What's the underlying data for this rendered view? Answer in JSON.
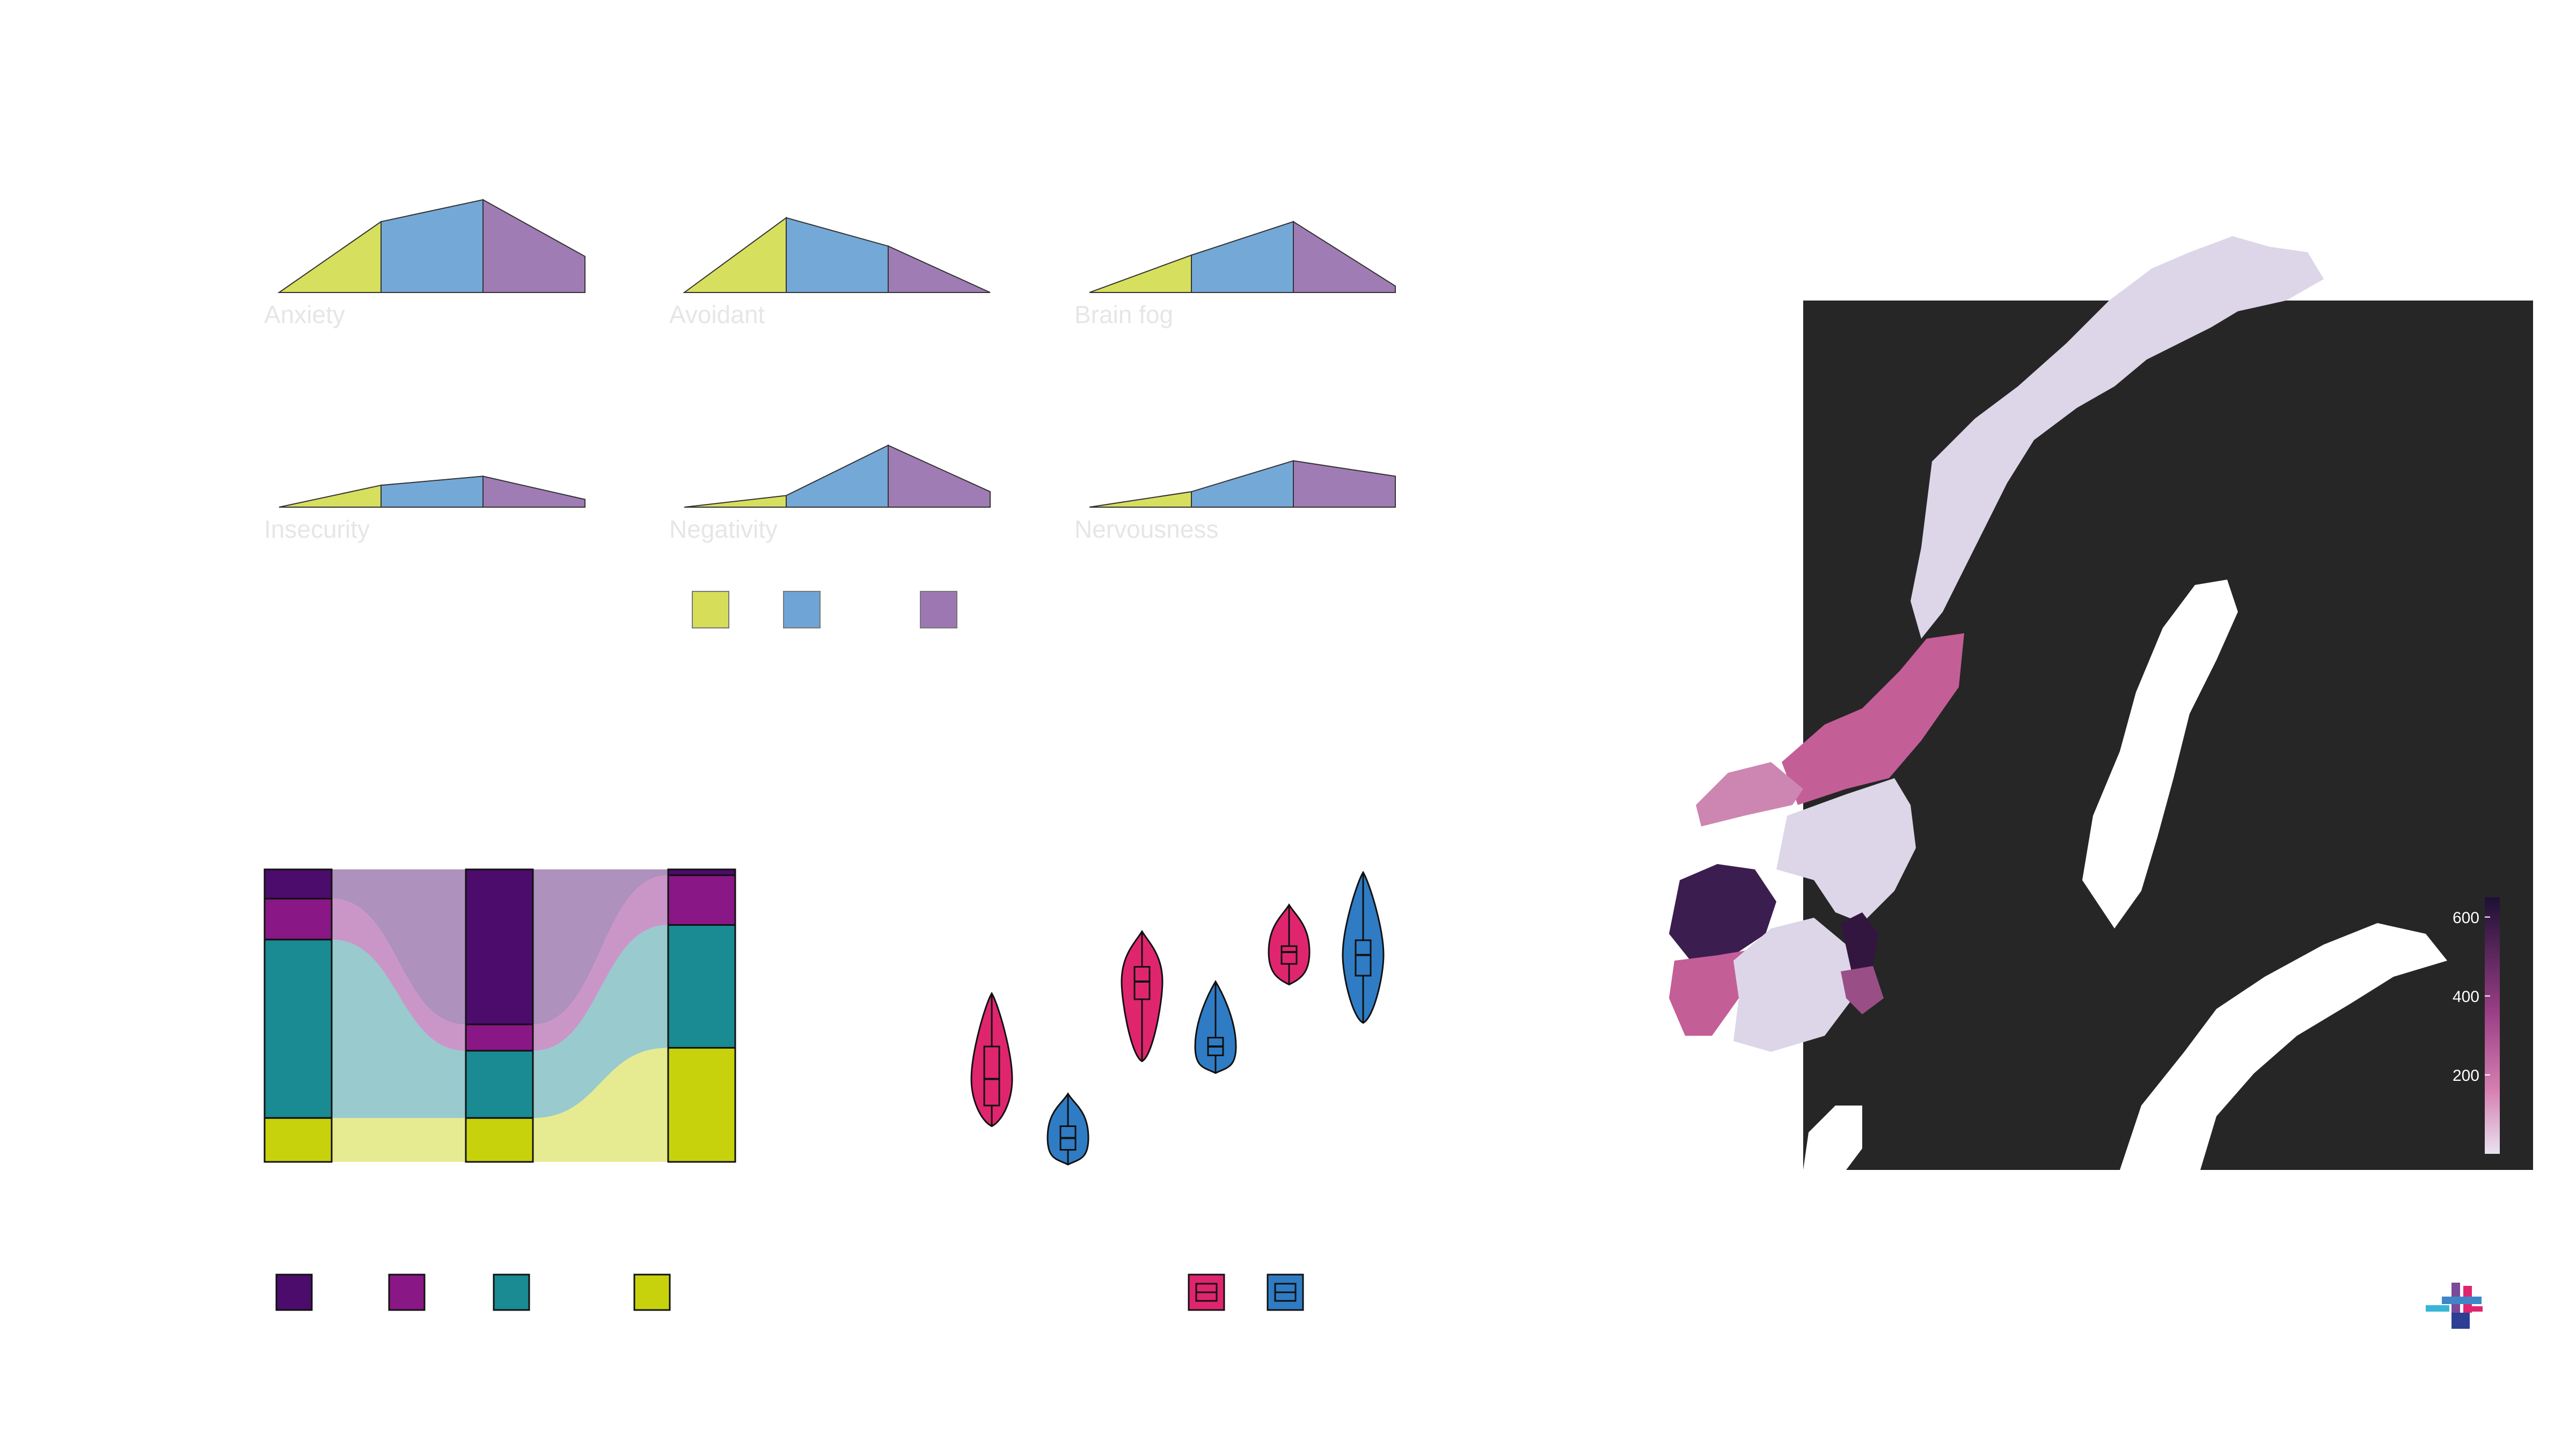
{
  "colors": {
    "background": "#ffffff",
    "green": "#c8d321",
    "blue": "#3f86c8",
    "purple": "#7b4a98",
    "label": "#e6e6e6",
    "alluvial": [
      "#4b0c6b",
      "#8a1786",
      "#1a8a93",
      "#c8d20c"
    ],
    "violin_pink": "#e0256f",
    "violin_blue": "#2f7cc4",
    "map_dark": "#262626",
    "map_light": "#dcd6e8"
  },
  "chart_data": [
    {
      "type": "area",
      "facets": [
        {
          "label": "Anxiety",
          "values": [
            0,
            0.55,
            0.72,
            0.28
          ]
        },
        {
          "label": "Avoidant",
          "values": [
            0,
            0.58,
            0.36,
            0.0
          ]
        },
        {
          "label": "Brain fog",
          "values": [
            0,
            0.29,
            0.55,
            0.05
          ]
        },
        {
          "label": "Insecurity",
          "values": [
            0,
            0.17,
            0.24,
            0.06
          ]
        },
        {
          "label": "Negativity",
          "values": [
            0,
            0.09,
            0.48,
            0.12
          ]
        },
        {
          "label": "Nervousness",
          "values": [
            0,
            0.12,
            0.36,
            0.24
          ]
        }
      ],
      "series_colors": [
        "#c8d321",
        "#3f86c8",
        "#7b4a98"
      ],
      "legend": [
        {
          "color": "#c8d321"
        },
        {
          "color": "#3f86c8"
        },
        {
          "color": "#7b4a98"
        }
      ]
    },
    {
      "type": "alluvial",
      "axes": 3,
      "stacks": [
        [
          0.1,
          0.14,
          0.61,
          0.15
        ],
        [
          0.53,
          0.09,
          0.23,
          0.15
        ],
        [
          0.02,
          0.17,
          0.42,
          0.39
        ]
      ],
      "legend": [
        {
          "color": "#4b0c6b"
        },
        {
          "color": "#8a1786"
        },
        {
          "color": "#1a8a93"
        },
        {
          "color": "#c8d20c"
        }
      ]
    },
    {
      "type": "violin",
      "ylim": [
        0,
        1
      ],
      "groups": [
        {
          "group": "pink",
          "min": 0.13,
          "q1": 0.2,
          "median": 0.29,
          "q3": 0.4,
          "max": 0.58
        },
        {
          "group": "blue",
          "min": 0.0,
          "q1": 0.05,
          "median": 0.09,
          "q3": 0.13,
          "max": 0.24
        },
        {
          "group": "pink",
          "min": 0.35,
          "q1": 0.56,
          "median": 0.62,
          "q3": 0.67,
          "max": 0.79
        },
        {
          "group": "blue",
          "min": 0.31,
          "q1": 0.37,
          "median": 0.4,
          "q3": 0.43,
          "max": 0.62
        },
        {
          "group": "pink",
          "min": 0.61,
          "q1": 0.68,
          "median": 0.72,
          "q3": 0.74,
          "max": 0.88
        },
        {
          "group": "blue",
          "min": 0.48,
          "q1": 0.64,
          "median": 0.71,
          "q3": 0.76,
          "max": 0.99
        }
      ],
      "legend": [
        {
          "color": "#e0256f"
        },
        {
          "color": "#2f7cc4"
        }
      ]
    },
    {
      "type": "choropleth",
      "colorbar": {
        "ticks": [
          "600",
          "400",
          "200"
        ],
        "range": [
          0,
          650
        ]
      },
      "regions": [
        {
          "value": 30
        },
        {
          "value": 280
        },
        {
          "value": 180
        },
        {
          "value": 60
        },
        {
          "value": 560
        },
        {
          "value": 300
        },
        {
          "value": 90
        },
        {
          "value": 600
        },
        {
          "value": 330
        }
      ]
    }
  ],
  "icons": {
    "logo": "logo-mark-icon"
  }
}
